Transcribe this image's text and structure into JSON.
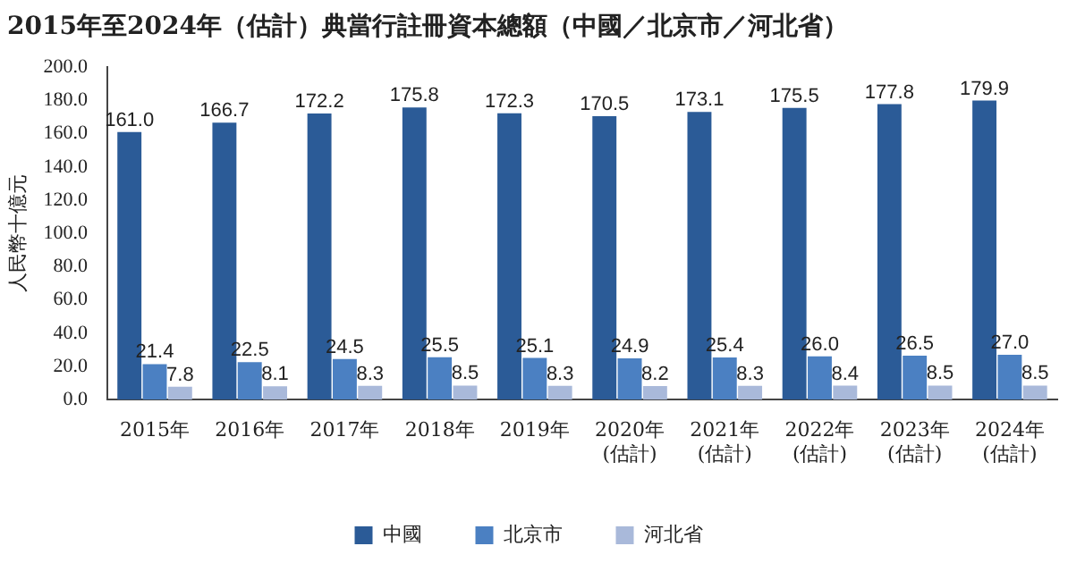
{
  "chart_data": {
    "type": "bar",
    "title": "2015年至2024年（估計）典當行註冊資本總額（中國／北京市／河北省）",
    "ylabel": "人民幣十億元",
    "categories": [
      "2015年",
      "2016年",
      "2017年",
      "2018年",
      "2019年",
      "2020年\n(估計)",
      "2021年\n(估計)",
      "2022年\n(估計)",
      "2023年\n(估計)",
      "2024年\n(估計)"
    ],
    "series": [
      {
        "name": "中國",
        "color": "#2b5b97",
        "values": [
          161.0,
          166.7,
          172.2,
          175.8,
          172.3,
          170.5,
          173.1,
          175.5,
          177.8,
          179.9
        ],
        "value_labels": [
          "161.0",
          "166.7",
          "172.2",
          "175.8",
          "172.3",
          "170.5",
          "173.1",
          "175.5",
          "177.8",
          "179.9"
        ]
      },
      {
        "name": "北京市",
        "color": "#4b80c2",
        "values": [
          21.4,
          22.5,
          24.5,
          25.5,
          25.1,
          24.9,
          25.4,
          26.0,
          26.5,
          27.0
        ],
        "value_labels": [
          "21.4",
          "22.5",
          "24.5",
          "25.5",
          "25.1",
          "24.9",
          "25.4",
          "26.0",
          "26.5",
          "27.0"
        ]
      },
      {
        "name": "河北省",
        "color": "#a9b9da",
        "values": [
          7.8,
          8.1,
          8.3,
          8.5,
          8.3,
          8.2,
          8.3,
          8.4,
          8.5,
          8.5
        ],
        "value_labels": [
          "7.8",
          "8.1",
          "8.3",
          "8.5",
          "8.3",
          "8.2",
          "8.3",
          "8.4",
          "8.5",
          "8.5"
        ]
      }
    ],
    "ylim": [
      0,
      200
    ],
    "yticks": [
      {
        "value": 0,
        "label": "0.0"
      },
      {
        "value": 20,
        "label": "20.0"
      },
      {
        "value": 40,
        "label": "40.0"
      },
      {
        "value": 60,
        "label": "60.0"
      },
      {
        "value": 80,
        "label": "80.0"
      },
      {
        "value": 100,
        "label": "100.0"
      },
      {
        "value": 120,
        "label": "120.0"
      },
      {
        "value": 140,
        "label": "140.0"
      },
      {
        "value": 160,
        "label": "160.0"
      },
      {
        "value": 180,
        "label": "180.0"
      },
      {
        "value": 200,
        "label": "200.0"
      }
    ],
    "grid": false,
    "legend": "bottom"
  }
}
